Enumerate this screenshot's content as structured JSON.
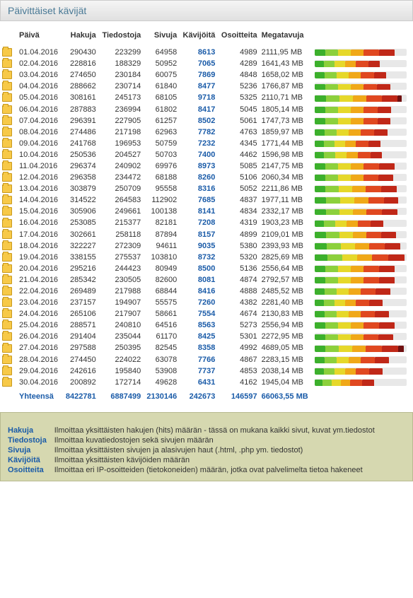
{
  "title": "Päivittäiset kävijät",
  "columns": {
    "date": "Päivä",
    "hits": "Hakuja",
    "files": "Tiedostoja",
    "pages": "Sivuja",
    "visits": "Kävijöitä",
    "ips": "Osoitteita",
    "mb": "Megatavuja"
  },
  "rows": [
    {
      "date": "01.04.2016",
      "hits": "290430",
      "files": "223299",
      "pages": "64958",
      "visits": "8613",
      "ips": "4989",
      "mb": "2111,95 MB",
      "bars": [
        15,
        18,
        18,
        18,
        22,
        22,
        0
      ]
    },
    {
      "date": "02.04.2016",
      "hits": "228816",
      "files": "188329",
      "pages": "50952",
      "visits": "7065",
      "ips": "4289",
      "mb": "1641,43 MB",
      "bars": [
        13,
        15,
        15,
        15,
        18,
        16,
        0
      ]
    },
    {
      "date": "03.04.2016",
      "hits": "274650",
      "files": "230184",
      "pages": "60075",
      "visits": "7869",
      "ips": "4848",
      "mb": "1658,02 MB",
      "bars": [
        14,
        17,
        17,
        17,
        19,
        17,
        0
      ]
    },
    {
      "date": "04.04.2016",
      "hits": "288662",
      "files": "230714",
      "pages": "61840",
      "visits": "8477",
      "ips": "5236",
      "mb": "1766,87 MB",
      "bars": [
        15,
        18,
        18,
        18,
        19,
        19,
        0
      ]
    },
    {
      "date": "05.04.2016",
      "hits": "308161",
      "files": "245173",
      "pages": "68105",
      "visits": "9718",
      "ips": "5325",
      "mb": "2110,71 MB",
      "bars": [
        16,
        19,
        19,
        19,
        22,
        22,
        6
      ]
    },
    {
      "date": "06.04.2016",
      "hits": "287883",
      "files": "236994",
      "pages": "61802",
      "visits": "8417",
      "ips": "5045",
      "mb": "1805,14 MB",
      "bars": [
        15,
        18,
        18,
        18,
        20,
        19,
        0
      ]
    },
    {
      "date": "07.04.2016",
      "hits": "296391",
      "files": "227905",
      "pages": "61257",
      "visits": "8502",
      "ips": "5061",
      "mb": "1747,73 MB",
      "bars": [
        15,
        18,
        18,
        18,
        20,
        18,
        0
      ]
    },
    {
      "date": "08.04.2016",
      "hits": "274486",
      "files": "217198",
      "pages": "62963",
      "visits": "7782",
      "ips": "4763",
      "mb": "1859,97 MB",
      "bars": [
        14,
        17,
        17,
        17,
        19,
        19,
        0
      ]
    },
    {
      "date": "09.04.2016",
      "hits": "241768",
      "files": "196953",
      "pages": "50759",
      "visits": "7232",
      "ips": "4345",
      "mb": "1771,44 MB",
      "bars": [
        13,
        15,
        15,
        15,
        18,
        17,
        0
      ]
    },
    {
      "date": "10.04.2016",
      "hits": "250536",
      "files": "204527",
      "pages": "50703",
      "visits": "7400",
      "ips": "4462",
      "mb": "1596,98 MB",
      "bars": [
        13,
        16,
        16,
        16,
        18,
        16,
        0
      ]
    },
    {
      "date": "11.04.2016",
      "hits": "296374",
      "files": "240902",
      "pages": "69976",
      "visits": "8973",
      "ips": "5085",
      "mb": "2147,75 MB",
      "bars": [
        15,
        18,
        18,
        18,
        22,
        22,
        0
      ]
    },
    {
      "date": "12.04.2016",
      "hits": "296358",
      "files": "234472",
      "pages": "68188",
      "visits": "8260",
      "ips": "5106",
      "mb": "2060,34 MB",
      "bars": [
        15,
        18,
        18,
        18,
        21,
        21,
        0
      ]
    },
    {
      "date": "13.04.2016",
      "hits": "303879",
      "files": "250709",
      "pages": "95558",
      "visits": "8316",
      "ips": "5052",
      "mb": "2211,86 MB",
      "bars": [
        15,
        19,
        19,
        19,
        22,
        22,
        0
      ]
    },
    {
      "date": "14.04.2016",
      "hits": "314522",
      "files": "264583",
      "pages": "112902",
      "visits": "7685",
      "ips": "4837",
      "mb": "1977,11 MB",
      "bars": [
        16,
        20,
        20,
        20,
        22,
        20,
        0
      ]
    },
    {
      "date": "15.04.2016",
      "hits": "305906",
      "files": "249661",
      "pages": "100138",
      "visits": "8141",
      "ips": "4834",
      "mb": "2332,17 MB",
      "bars": [
        16,
        19,
        19,
        19,
        22,
        22,
        0
      ]
    },
    {
      "date": "16.04.2016",
      "hits": "253085",
      "files": "215377",
      "pages": "82181",
      "visits": "7208",
      "ips": "4319",
      "mb": "1903,23 MB",
      "bars": [
        13,
        16,
        16,
        16,
        18,
        18,
        0
      ]
    },
    {
      "date": "17.04.2016",
      "hits": "302661",
      "files": "258118",
      "pages": "87894",
      "visits": "8157",
      "ips": "4899",
      "mb": "2109,01 MB",
      "bars": [
        16,
        19,
        19,
        19,
        21,
        21,
        0
      ]
    },
    {
      "date": "18.04.2016",
      "hits": "322227",
      "files": "272309",
      "pages": "94611",
      "visits": "9035",
      "ips": "5380",
      "mb": "2393,93 MB",
      "bars": [
        17,
        20,
        20,
        20,
        22,
        22,
        0
      ]
    },
    {
      "date": "19.04.2016",
      "hits": "338155",
      "files": "275537",
      "pages": "103810",
      "visits": "8732",
      "ips": "5320",
      "mb": "2825,69 MB",
      "bars": [
        18,
        21,
        21,
        21,
        23,
        23,
        0
      ]
    },
    {
      "date": "20.04.2016",
      "hits": "295216",
      "files": "244423",
      "pages": "80949",
      "visits": "8500",
      "ips": "5136",
      "mb": "2556,64 MB",
      "bars": [
        15,
        18,
        18,
        18,
        22,
        22,
        0
      ]
    },
    {
      "date": "21.04.2016",
      "hits": "285342",
      "files": "230505",
      "pages": "82600",
      "visits": "8081",
      "ips": "4874",
      "mb": "2792,57 MB",
      "bars": [
        15,
        18,
        18,
        18,
        22,
        22,
        0
      ]
    },
    {
      "date": "22.04.2016",
      "hits": "269489",
      "files": "217988",
      "pages": "68844",
      "visits": "8416",
      "ips": "4888",
      "mb": "2485,52 MB",
      "bars": [
        14,
        17,
        17,
        17,
        21,
        21,
        0
      ]
    },
    {
      "date": "23.04.2016",
      "hits": "237157",
      "files": "194907",
      "pages": "55575",
      "visits": "7260",
      "ips": "4382",
      "mb": "2281,40 MB",
      "bars": [
        13,
        15,
        15,
        15,
        19,
        19,
        0
      ]
    },
    {
      "date": "24.04.2016",
      "hits": "265106",
      "files": "217907",
      "pages": "58661",
      "visits": "7554",
      "ips": "4674",
      "mb": "2130,83 MB",
      "bars": [
        14,
        17,
        17,
        17,
        20,
        20,
        0
      ]
    },
    {
      "date": "25.04.2016",
      "hits": "288571",
      "files": "240810",
      "pages": "64516",
      "visits": "8563",
      "ips": "5273",
      "mb": "2556,94 MB",
      "bars": [
        15,
        18,
        18,
        18,
        22,
        22,
        0
      ]
    },
    {
      "date": "26.04.2016",
      "hits": "291404",
      "files": "235044",
      "pages": "61170",
      "visits": "8425",
      "ips": "5301",
      "mb": "2272,95 MB",
      "bars": [
        15,
        18,
        18,
        18,
        21,
        21,
        0
      ]
    },
    {
      "date": "27.04.2016",
      "hits": "297588",
      "files": "250395",
      "pages": "82545",
      "visits": "8358",
      "ips": "4992",
      "mb": "4689,05 MB",
      "bars": [
        15,
        19,
        19,
        19,
        23,
        23,
        8
      ]
    },
    {
      "date": "28.04.2016",
      "hits": "274450",
      "files": "224022",
      "pages": "63078",
      "visits": "7766",
      "ips": "4867",
      "mb": "2283,15 MB",
      "bars": [
        14,
        17,
        17,
        17,
        20,
        20,
        0
      ]
    },
    {
      "date": "29.04.2016",
      "hits": "242616",
      "files": "195840",
      "pages": "53908",
      "visits": "7737",
      "ips": "4853",
      "mb": "2038,14 MB",
      "bars": [
        13,
        15,
        15,
        15,
        19,
        19,
        0
      ]
    },
    {
      "date": "30.04.2016",
      "hits": "200892",
      "files": "172714",
      "pages": "49628",
      "visits": "6431",
      "ips": "4162",
      "mb": "1945,04 MB",
      "bars": [
        11,
        13,
        13,
        13,
        17,
        17,
        0
      ]
    }
  ],
  "total": {
    "label": "Yhteensä",
    "hits": "8422781",
    "files": "6887499",
    "pages": "2130146",
    "visits": "242673",
    "ips": "146597",
    "mb": "66063,55 MB"
  },
  "legend": [
    {
      "term": "Hakuja",
      "desc": "Ilmoittaa yksittäisten hakujen (hits) määrän - tässä on mukana kaikki sivut, kuvat ym.tiedostot"
    },
    {
      "term": "Tiedostoja",
      "desc": "Ilmoittaa kuvatiedostojen sekä sivujen määrän"
    },
    {
      "term": "Sivuja",
      "desc": "Ilmoittaa yksittäisten sivujen ja alasivujen haut (.html, .php ym. tiedostot)"
    },
    {
      "term": "Kävijöitä",
      "desc": "Ilmoittaa yksittäisten kävijöiden määrän"
    },
    {
      "term": "Osoitteita",
      "desc": "Ilmoittaa eri IP-osoitteiden (tietokoneiden) määrän, jotka ovat palvelimelta tietoa hakeneet"
    }
  ],
  "bar_colors": [
    "#3cb02c",
    "#8cd03c",
    "#e6d82a",
    "#f0a818",
    "#e04820",
    "#c02818",
    "#701010"
  ]
}
